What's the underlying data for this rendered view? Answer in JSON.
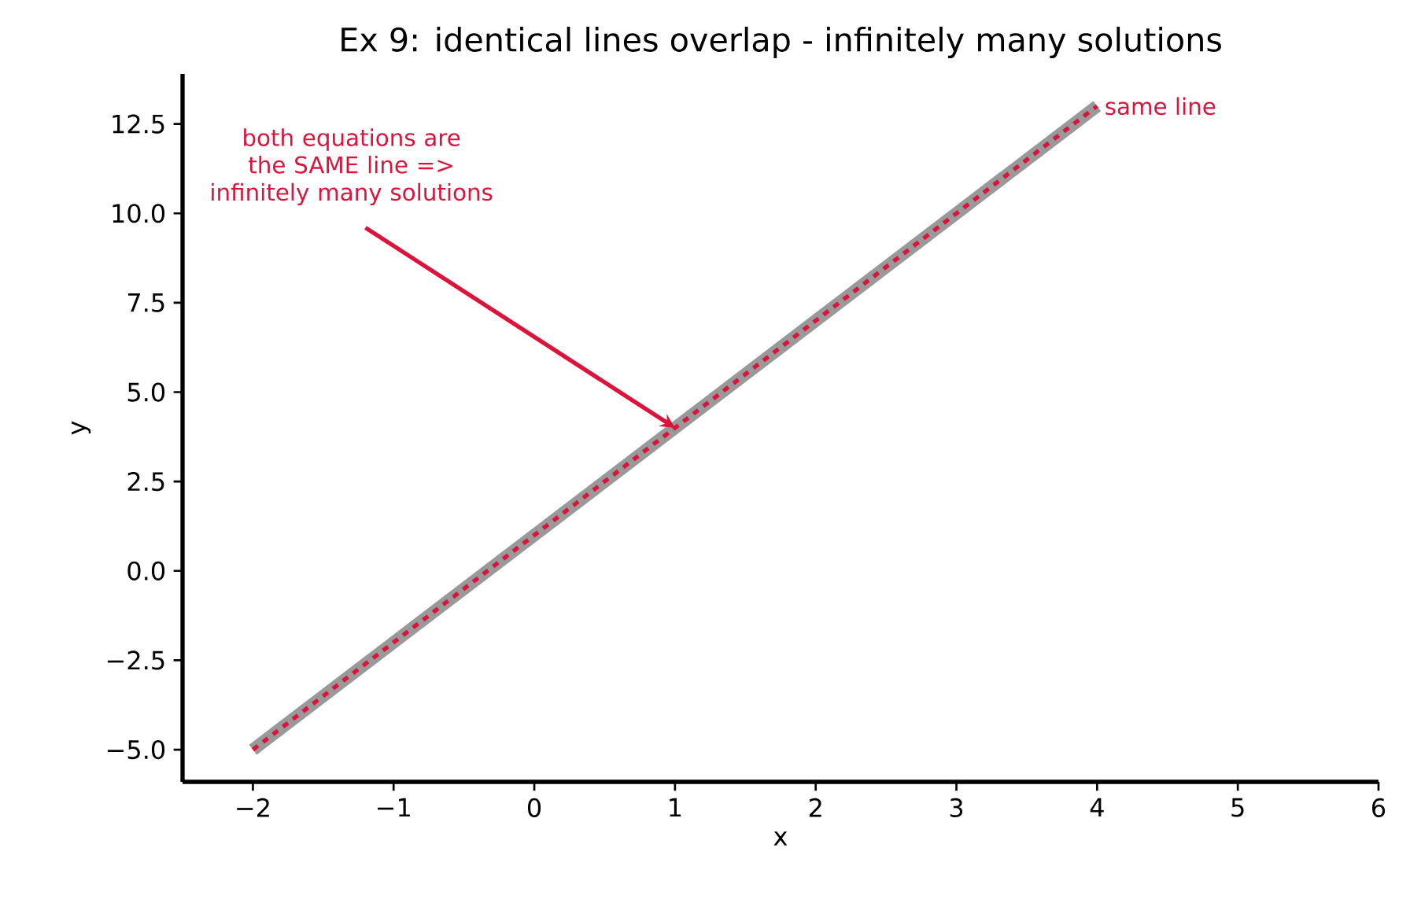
{
  "chart_data": {
    "type": "line",
    "title": "Ex 9: identical lines overlap - infinitely many solutions",
    "xlabel": "x",
    "ylabel": "y",
    "xlim": [
      -2.5,
      6
    ],
    "ylim": [
      -5.9,
      13.9
    ],
    "xticks": [
      {
        "value": -2,
        "label": "−2"
      },
      {
        "value": -1,
        "label": "−1"
      },
      0,
      1,
      2,
      3,
      4,
      5,
      6
    ],
    "yticks": [
      {
        "value": -5,
        "label": "−5.0"
      },
      {
        "value": -2.5,
        "label": "−2.5"
      },
      {
        "value": 0,
        "label": "0.0"
      },
      2.5,
      {
        "value": 5,
        "label": "5.0"
      },
      7.5,
      {
        "value": 10,
        "label": "10.0"
      },
      12.5
    ],
    "x": [
      -2,
      4
    ],
    "series": [
      {
        "color": "#999999",
        "values": [
          -5,
          13
        ],
        "line_style": "solid"
      },
      {
        "color": "#dc143c",
        "values": [
          -5,
          13
        ],
        "line_style": "dashed"
      }
    ],
    "annotations": [
      {
        "text": "both equations are the SAME line => infinitely many solutions",
        "x": 1,
        "y": 4
      },
      {
        "text": "same line",
        "x": 4,
        "y": 13
      }
    ],
    "grid": false,
    "marker": "none"
  }
}
